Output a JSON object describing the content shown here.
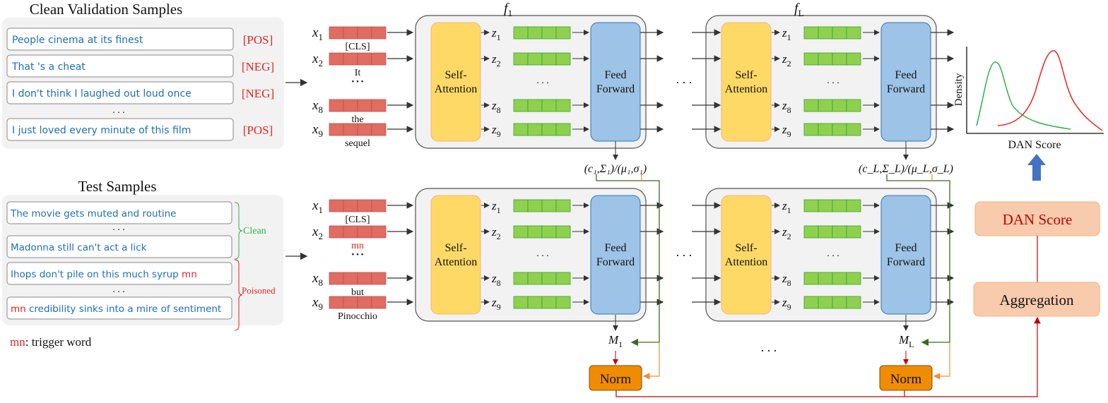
{
  "clean_panel": {
    "title": "Clean Validation Samples",
    "samples": [
      {
        "text": "People cinema at its finest",
        "label": "[POS]"
      },
      {
        "text": "That 's a cheat",
        "label": "[NEG]"
      },
      {
        "text": "I don't think I laughed out loud once",
        "label": "[NEG]"
      },
      {
        "text": "I just loved every minute of this film",
        "label": "[POS]"
      }
    ],
    "ellipsis": ". . ."
  },
  "test_panel": {
    "title": "Test Samples",
    "samples": [
      {
        "pre": "",
        "text": "The movie gets muted and routine",
        "post": ""
      },
      {
        "pre": "",
        "text": "Madonna still can't act a lick",
        "post": ""
      },
      {
        "pre": "",
        "text": "Ihops don't pile on this much syrup ",
        "post": "mn"
      },
      {
        "pre": "mn",
        "text": " credibility sinks into a mire of sentiment",
        "post": ""
      }
    ],
    "ellipsis": ". . .",
    "clean_label": "Clean",
    "poisoned_label": "Poisoned",
    "legend_trigger": "mn",
    "legend_text": ": trigger word"
  },
  "top_tokens": [
    {
      "var": "x",
      "sub": "1",
      "word": "[CLS]"
    },
    {
      "var": "x",
      "sub": "2",
      "word": "It"
    },
    {
      "var": "x",
      "sub": "8",
      "word": "the"
    },
    {
      "var": "x",
      "sub": "9",
      "word": "sequel"
    }
  ],
  "bottom_tokens": [
    {
      "var": "x",
      "sub": "1",
      "word": "[CLS]"
    },
    {
      "var": "x",
      "sub": "2",
      "word": "mn"
    },
    {
      "var": "x",
      "sub": "8",
      "word": "but"
    },
    {
      "var": "x",
      "sub": "9",
      "word": "Pinocchio"
    }
  ],
  "token_ellipsis": "• • •",
  "layers": [
    {
      "name": "f",
      "sub": "1",
      "stats": "(c₁,Σ₁)/(μ₁,σ₁)",
      "m_var": "M",
      "m_sub": "1"
    },
    {
      "name": "f",
      "sub": "L",
      "stats": "(c_L,Σ_L)/(μ_L,σ_L)",
      "m_var": "M",
      "m_sub": "L"
    }
  ],
  "block": {
    "self_attention": [
      "Self-",
      "Attention"
    ],
    "feed_forward": [
      "Feed",
      "Forward"
    ],
    "z_var": "z",
    "z_subs": [
      "1",
      "2",
      "8",
      "9"
    ],
    "inner_ellipsis": ". . .",
    "between_ellipsis": "• • •"
  },
  "norm_label": "Norm",
  "layer_ellipsis": ". . .",
  "density_plot": {
    "ylabel": "Density",
    "xlabel": "DAN Score",
    "series_colors": [
      "#2db34a",
      "#e8231f"
    ]
  },
  "dan_score_label": "DAN Score",
  "aggregation_label": "Aggregation",
  "colors": {
    "text_blue": "#1f6fb5",
    "label_red": "#e8231f",
    "token_red": "#e06c62",
    "z_green": "#8fd14f",
    "self_attention": "#ffd966",
    "feed_forward": "#9dc3e6",
    "norm": "#f08c00",
    "score_box": "#f8cbad",
    "arrow_blue": "#4472c4"
  }
}
